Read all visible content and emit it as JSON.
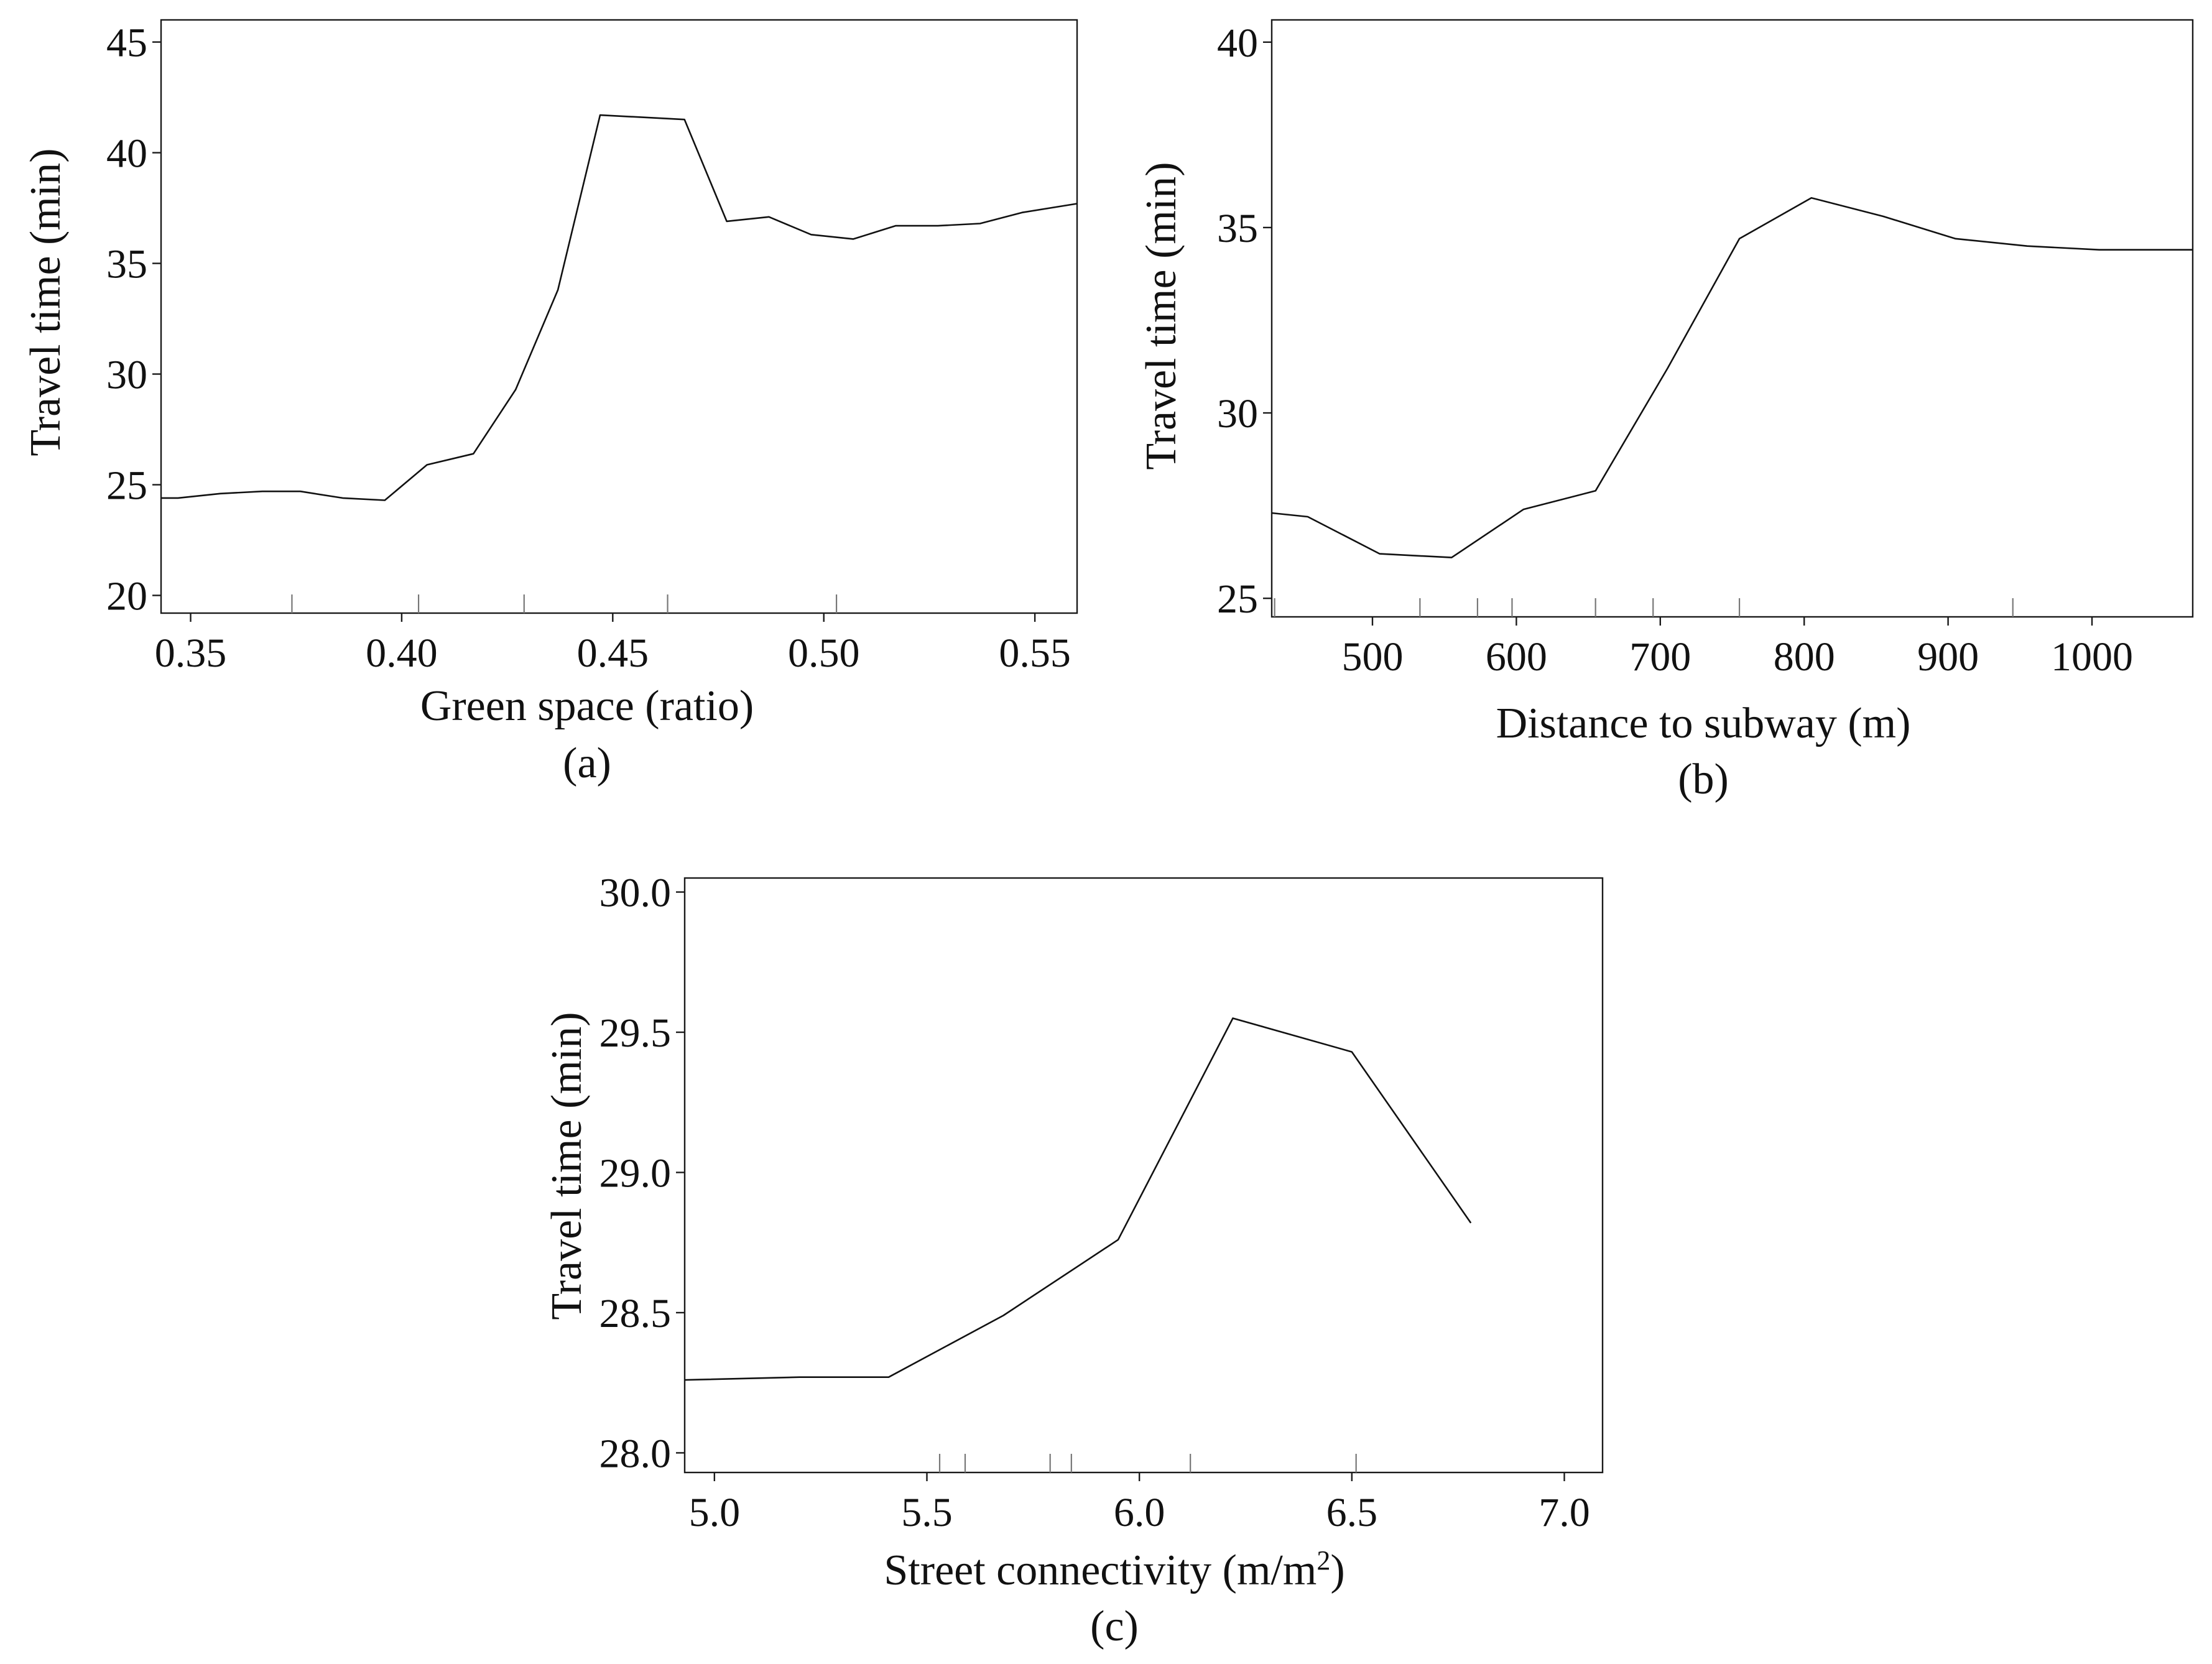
{
  "chart_data": [
    {
      "type": "line",
      "panel_label": "(a)",
      "xlabel": "Green space (ratio)",
      "ylabel": "Travel time (min)",
      "xlim": [
        0.343,
        0.56
      ],
      "ylim": [
        19.2,
        46.0
      ],
      "xticks": [
        0.35,
        0.4,
        0.45,
        0.5,
        0.55
      ],
      "xtick_labels": [
        "0.35",
        "0.40",
        "0.45",
        "0.50",
        "0.55"
      ],
      "yticks": [
        20,
        25,
        30,
        35,
        40,
        45
      ],
      "ytick_labels": [
        "20",
        "25",
        "30",
        "35",
        "40",
        "45"
      ],
      "rug": [
        0.374,
        0.404,
        0.429,
        0.463,
        0.503
      ],
      "x": [
        0.343,
        0.347,
        0.357,
        0.367,
        0.376,
        0.386,
        0.396,
        0.406,
        0.417,
        0.427,
        0.437,
        0.447,
        0.457,
        0.467,
        0.477,
        0.487,
        0.497,
        0.507,
        0.517,
        0.527,
        0.537,
        0.547,
        0.56
      ],
      "y": [
        24.4,
        24.4,
        24.6,
        24.7,
        24.7,
        24.4,
        24.3,
        25.9,
        26.4,
        29.3,
        33.8,
        41.7,
        41.6,
        41.5,
        36.9,
        37.1,
        36.3,
        36.1,
        36.7,
        36.7,
        36.8,
        37.3,
        37.7
      ]
    },
    {
      "type": "line",
      "panel_label": "(b)",
      "xlabel": "Distance to subway (m)",
      "ylabel": "Travel time (min)",
      "xlim": [
        430,
        1070
      ],
      "ylim": [
        24.5,
        40.6
      ],
      "xticks": [
        500,
        600,
        700,
        800,
        900,
        1000
      ],
      "xtick_labels": [
        "500",
        "600",
        "700",
        "800",
        "900",
        "1000"
      ],
      "yticks": [
        25,
        30,
        35,
        40
      ],
      "ytick_labels": [
        "25",
        "30",
        "35",
        "40"
      ],
      "rug": [
        432,
        533,
        573,
        597,
        655,
        695,
        755,
        945
      ],
      "x": [
        430,
        455,
        505,
        555,
        605,
        655,
        705,
        755,
        805,
        855,
        905,
        955,
        1005,
        1070
      ],
      "y": [
        27.3,
        27.2,
        26.2,
        26.1,
        27.4,
        27.9,
        31.2,
        34.7,
        35.8,
        35.3,
        34.7,
        34.5,
        34.4,
        34.4
      ]
    },
    {
      "type": "line",
      "panel_label": "(c)",
      "xlabel": "Street connectivity (m/m²)",
      "ylabel": "Travel time (min)",
      "xlim": [
        4.93,
        7.09
      ],
      "ylim": [
        27.93,
        30.05
      ],
      "xticks": [
        5.0,
        5.5,
        6.0,
        6.5,
        7.0
      ],
      "xtick_labels": [
        "5.0",
        "5.5",
        "6.0",
        "6.5",
        "7.0"
      ],
      "yticks": [
        28.0,
        28.5,
        29.0,
        29.5,
        30.0
      ],
      "ytick_labels": [
        "28.0",
        "28.5",
        "29.0",
        "29.5",
        "30.0"
      ],
      "rug": [
        5.53,
        5.59,
        5.79,
        5.84,
        6.12,
        6.51
      ],
      "x": [
        4.93,
        5.2,
        5.41,
        5.68,
        5.95,
        6.22,
        6.5,
        6.78
      ],
      "y": [
        28.26,
        28.27,
        28.27,
        28.49,
        28.76,
        29.55,
        29.43,
        28.82
      ]
    }
  ]
}
